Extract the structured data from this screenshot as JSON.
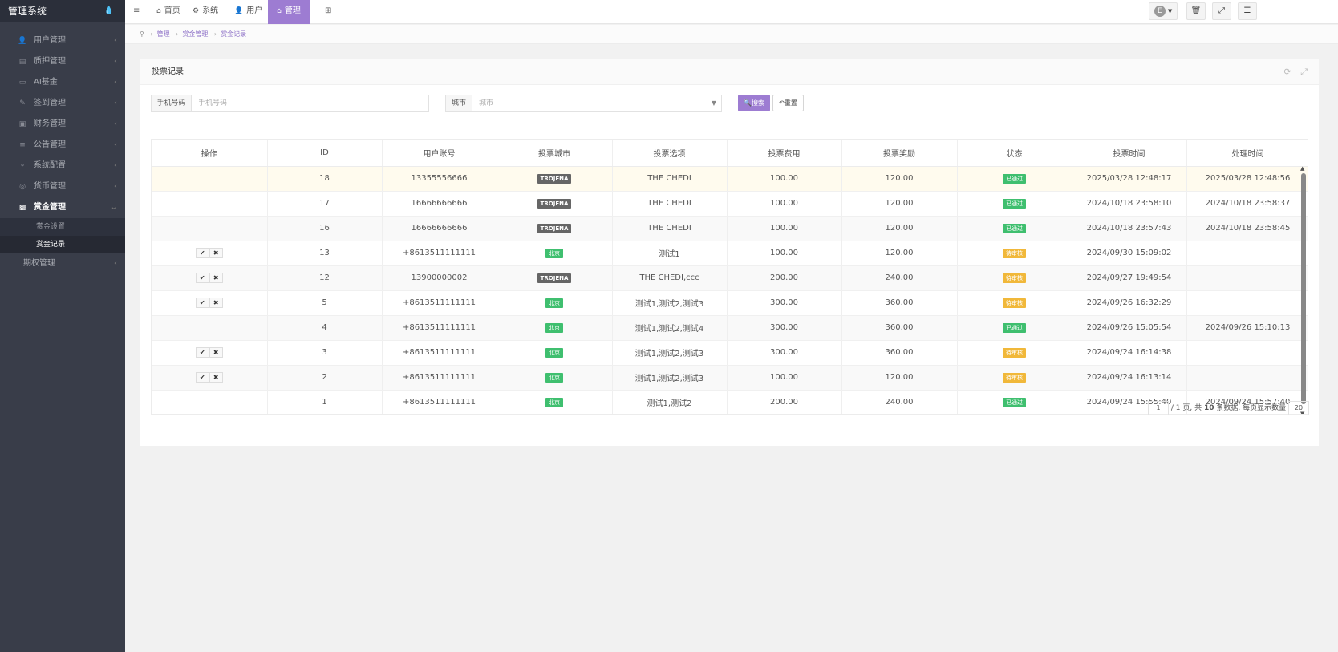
{
  "app": {
    "title": "管理系统",
    "drop_icon": "💧"
  },
  "sidebar": {
    "items": [
      {
        "label": "用户管理",
        "icon": "user-icon",
        "glyph": "👤"
      },
      {
        "label": "质押管理",
        "icon": "list-icon",
        "glyph": "▤"
      },
      {
        "label": "AI基金",
        "icon": "monitor-icon",
        "glyph": "▭"
      },
      {
        "label": "签到管理",
        "icon": "edit-icon",
        "glyph": "✎"
      },
      {
        "label": "财务管理",
        "icon": "money-icon",
        "glyph": "▣"
      },
      {
        "label": "公告管理",
        "icon": "bars-icon",
        "glyph": "≡"
      },
      {
        "label": "系统配置",
        "icon": "share-icon",
        "glyph": "⚬"
      },
      {
        "label": "货币管理",
        "icon": "coin-icon",
        "glyph": "◎"
      }
    ],
    "open_item": {
      "label": "赏金管理",
      "icon": "gift-icon",
      "glyph": "▩"
    },
    "sub_items": [
      {
        "label": "赏金设置"
      },
      {
        "label": "赏金记录"
      }
    ],
    "last_item": {
      "label": "期权管理"
    }
  },
  "header": {
    "menu_icon": "≡",
    "nav": [
      {
        "label": "首页",
        "icon": "home-icon",
        "glyph": "⌂"
      },
      {
        "label": "系统",
        "icon": "gear-icon",
        "glyph": "⚙"
      },
      {
        "label": "用户",
        "icon": "user-icon",
        "glyph": "👤"
      },
      {
        "label": "管理",
        "icon": "bank-icon",
        "glyph": "⌂"
      }
    ],
    "grid_icon": "⊞",
    "avatar_letter": "E",
    "right_glyphs": [
      "🗑",
      "⤢",
      "☰"
    ]
  },
  "breadcrumb": {
    "items": [
      "管理",
      "赏金管理",
      "赏金记录"
    ],
    "pin": "⚲"
  },
  "panel": {
    "title": "投票记录",
    "filters": {
      "phone_label": "手机号码",
      "phone_placeholder": "手机号码",
      "city_label": "城市",
      "city_placeholder": "城市"
    },
    "search_label": "搜索",
    "reset_label": "重置"
  },
  "table": {
    "columns": [
      "操作",
      "ID",
      "用户账号",
      "投票城市",
      "投票选项",
      "投票费用",
      "投票奖励",
      "状态",
      "投票时间",
      "处理时间"
    ],
    "rows": [
      {
        "ops": false,
        "id": "18",
        "account": "13355556666",
        "city": "TROJENA",
        "city_type": "grey",
        "option": "THE CHEDI",
        "fee": "100.00",
        "reward": "120.00",
        "status": "已通过",
        "status_type": "ok",
        "vote_time": "2025/03/28 12:48:17",
        "handle_time": "2025/03/28 12:48:56"
      },
      {
        "ops": false,
        "id": "17",
        "account": "16666666666",
        "city": "TROJENA",
        "city_type": "grey",
        "option": "THE CHEDI",
        "fee": "100.00",
        "reward": "120.00",
        "status": "已通过",
        "status_type": "ok",
        "vote_time": "2024/10/18 23:58:10",
        "handle_time": "2024/10/18 23:58:37"
      },
      {
        "ops": false,
        "id": "16",
        "account": "16666666666",
        "city": "TROJENA",
        "city_type": "grey",
        "option": "THE CHEDI",
        "fee": "100.00",
        "reward": "120.00",
        "status": "已通过",
        "status_type": "ok",
        "vote_time": "2024/10/18 23:57:43",
        "handle_time": "2024/10/18 23:58:45"
      },
      {
        "ops": true,
        "id": "13",
        "account": "+8613511111111",
        "city": "北京",
        "city_type": "green",
        "option": "测试1",
        "fee": "100.00",
        "reward": "120.00",
        "status": "待审核",
        "status_type": "wait",
        "vote_time": "2024/09/30 15:09:02",
        "handle_time": ""
      },
      {
        "ops": true,
        "id": "12",
        "account": "13900000002",
        "city": "TROJENA",
        "city_type": "grey",
        "option": "THE CHEDI,ccc",
        "fee": "200.00",
        "reward": "240.00",
        "status": "待审核",
        "status_type": "wait",
        "vote_time": "2024/09/27 19:49:54",
        "handle_time": ""
      },
      {
        "ops": true,
        "id": "5",
        "account": "+8613511111111",
        "city": "北京",
        "city_type": "green",
        "option": "测试1,测试2,测试3",
        "fee": "300.00",
        "reward": "360.00",
        "status": "待审核",
        "status_type": "wait",
        "vote_time": "2024/09/26 16:32:29",
        "handle_time": ""
      },
      {
        "ops": false,
        "id": "4",
        "account": "+8613511111111",
        "city": "北京",
        "city_type": "green",
        "option": "测试1,测试2,测试4",
        "fee": "300.00",
        "reward": "360.00",
        "status": "已通过",
        "status_type": "ok",
        "vote_time": "2024/09/26 15:05:54",
        "handle_time": "2024/09/26 15:10:13"
      },
      {
        "ops": true,
        "id": "3",
        "account": "+8613511111111",
        "city": "北京",
        "city_type": "green",
        "option": "测试1,测试2,测试3",
        "fee": "300.00",
        "reward": "360.00",
        "status": "待审核",
        "status_type": "wait",
        "vote_time": "2024/09/24 16:14:38",
        "handle_time": ""
      },
      {
        "ops": true,
        "id": "2",
        "account": "+8613511111111",
        "city": "北京",
        "city_type": "green",
        "option": "测试1,测试2,测试3",
        "fee": "100.00",
        "reward": "120.00",
        "status": "待审核",
        "status_type": "wait",
        "vote_time": "2024/09/24 16:13:14",
        "handle_time": ""
      },
      {
        "ops": false,
        "id": "1",
        "account": "+8613511111111",
        "city": "北京",
        "city_type": "green",
        "option": "测试1,测试2",
        "fee": "200.00",
        "reward": "240.00",
        "status": "已通过",
        "status_type": "ok",
        "vote_time": "2024/09/24 15:55:40",
        "handle_time": "2024/09/24 15:57:40"
      }
    ],
    "approve_glyph": "✔",
    "reject_glyph": "✖"
  },
  "pager": {
    "current": "1",
    "total_pages_text": "/ 1 页,  共",
    "total_count": "10",
    "count_suffix": "条数据,  每页显示数量",
    "page_size": "20"
  },
  "colors": {
    "accent": "#9d7cd2",
    "sidebar": "#393d49",
    "ok": "#3fbf6f",
    "wait": "#f1b83a"
  }
}
